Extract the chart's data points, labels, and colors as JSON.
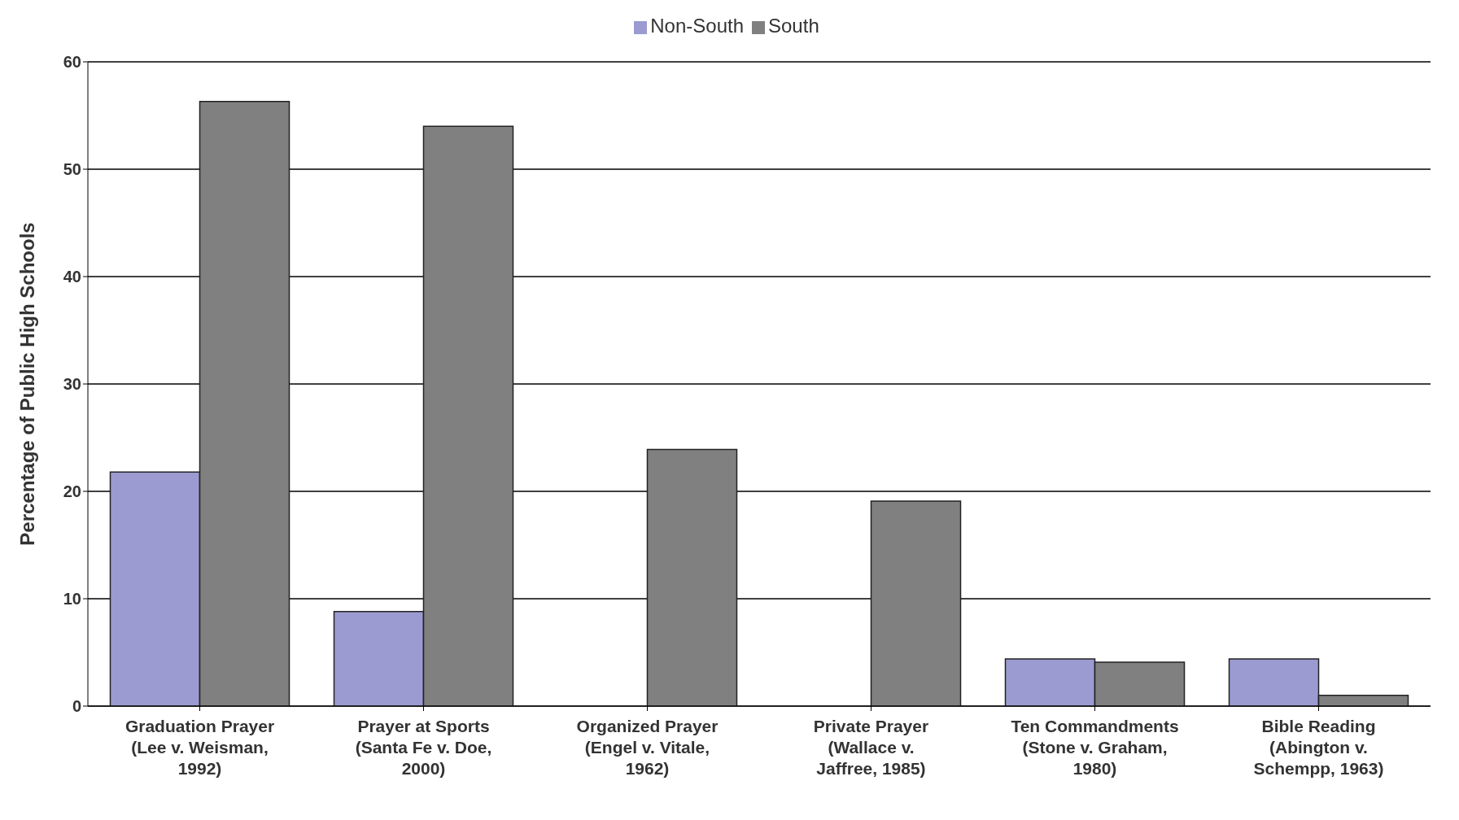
{
  "chart_data": {
    "type": "bar",
    "ylabel": "Percentage of Public High Schools",
    "categories": [
      "Graduation Prayer (Lee v. Weisman, 1992)",
      "Prayer at Sports (Santa Fe v. Doe, 2000)",
      "Organized Prayer (Engel v. Vitale, 1962)",
      "Private Prayer (Wallace v. Jaffree, 1985)",
      "Ten Commandments (Stone v. Graham, 1980)",
      "Bible Reading (Abington v. Schempp, 1963)"
    ],
    "series": [
      {
        "name": "Non-South",
        "color": "#9b9bd1",
        "values": [
          21.8,
          8.8,
          0,
          0,
          4.4,
          4.4
        ]
      },
      {
        "name": "South",
        "color": "#808080",
        "values": [
          56.3,
          54.0,
          23.9,
          19.1,
          4.1,
          1.0
        ]
      }
    ],
    "ylim": [
      0,
      60
    ],
    "yticks": [
      0,
      10,
      20,
      30,
      40,
      50,
      60
    ],
    "grid": "y",
    "legend": "top"
  }
}
